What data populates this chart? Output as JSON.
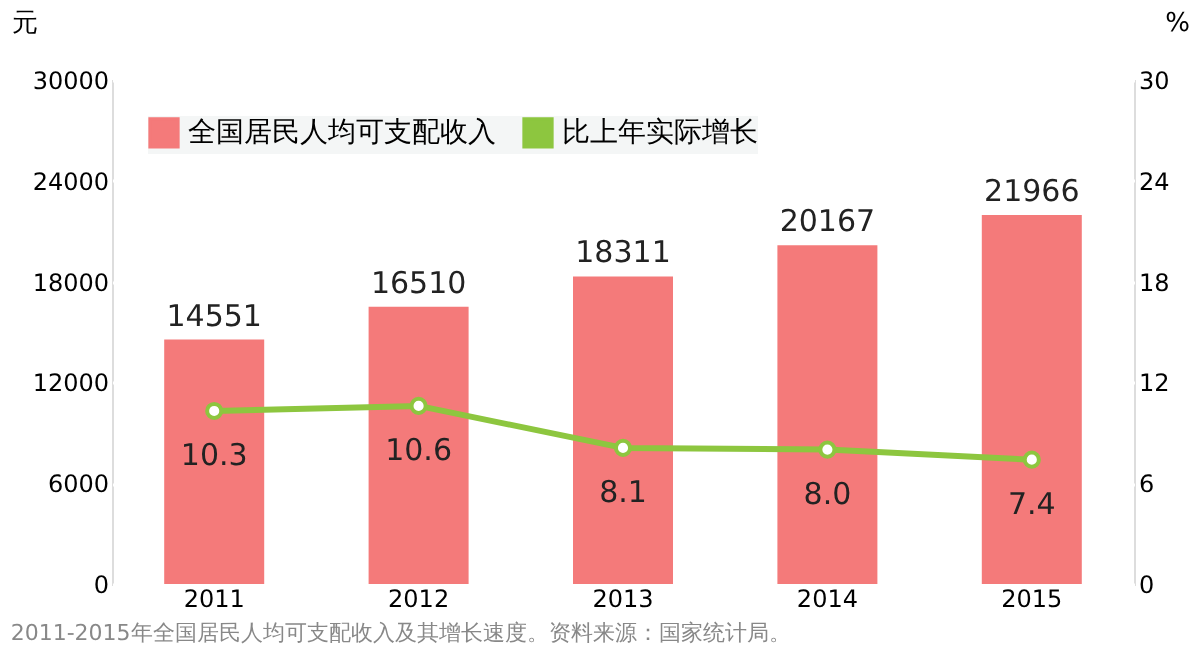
{
  "chart_data": {
    "type": "bar",
    "categories": [
      "2011",
      "2012",
      "2013",
      "2014",
      "2015"
    ],
    "series": [
      {
        "name": "全国居民人均可支配收入",
        "color": "#f47a7a",
        "values": [
          14551,
          16510,
          18311,
          20167,
          21966
        ]
      },
      {
        "name": "比上年实际增长",
        "type": "line",
        "axis": "y2",
        "color": "#8dc63f",
        "values": [
          10.3,
          10.6,
          8.1,
          8.0,
          7.4
        ],
        "value_labels": [
          "10.3",
          "10.6",
          "8.1",
          "8.0",
          "7.4"
        ]
      }
    ],
    "ylabel": "元",
    "y2label": "%",
    "ylim": [
      0,
      30000
    ],
    "yticks": [
      0,
      6000,
      12000,
      18000,
      24000,
      30000
    ],
    "y2lim": [
      0,
      30
    ],
    "y2ticks": [
      0,
      6,
      12,
      18,
      24,
      30
    ],
    "data_labels": true,
    "grid": "y",
    "legend": "top left",
    "marker": "circle",
    "annotations": [
      "2011-2015年全国居民人均可支配收入及其增长速度。资料来源：国家统计局。"
    ]
  }
}
